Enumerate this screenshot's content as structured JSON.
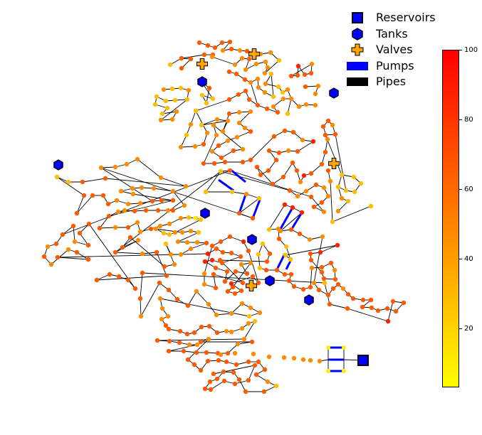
{
  "legend": {
    "reservoirs": "Reservoirs",
    "tanks": "Tanks",
    "valves": "Valves",
    "pumps": "Pumps",
    "pipes": "Pipes"
  },
  "colorbar": {
    "ticks": [
      "100",
      "80",
      "60",
      "40",
      "20"
    ],
    "min": 0,
    "max": 100,
    "colormap": "autumn_r"
  },
  "colors": {
    "reservoir": "#0000ff",
    "tank": "#0000ff",
    "valve": "#ffa500",
    "pump": "#0000ff",
    "pipe": "#000000"
  }
}
